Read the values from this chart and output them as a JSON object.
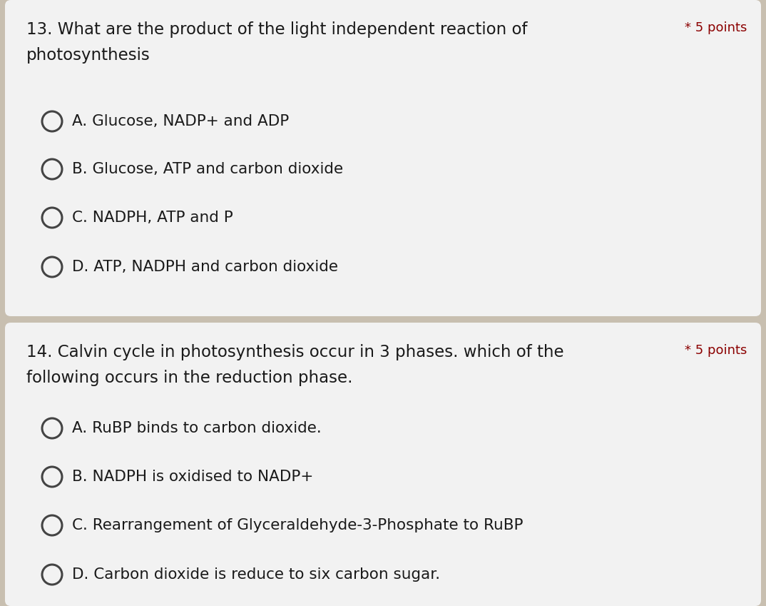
{
  "bg_color": "#c8bfb0",
  "card_color": "#f2f2f2",
  "card1": {
    "points_label": "* 5 points",
    "points_color": "#8b0000",
    "question_line1": "13. What are the product of the light independent reaction of",
    "question_line2": "photosynthesis",
    "options": [
      "A. Glucose, NADP+ and ADP",
      "B. Glucose, ATP and carbon dioxide",
      "C. NADPH, ATP and P",
      "D. ATP, NADPH and carbon dioxide"
    ]
  },
  "card2": {
    "points_label": "* 5 points",
    "points_color": "#8b0000",
    "question_line1": "14. Calvin cycle in photosynthesis occur in 3 phases. which of the",
    "question_line2": "following occurs in the reduction phase.",
    "options": [
      "A. RuBP binds to carbon dioxide.",
      "B. NADPH is oxidised to NADP+",
      "C. Rearrangement of Glyceraldehyde-3-Phosphate to RuBP",
      "D. Carbon dioxide is reduce to six carbon sugar."
    ]
  },
  "circle_color": "#444444",
  "text_color": "#1a1a1a",
  "question_fontsize": 16.5,
  "option_fontsize": 15.5,
  "points_fontsize": 13.0
}
